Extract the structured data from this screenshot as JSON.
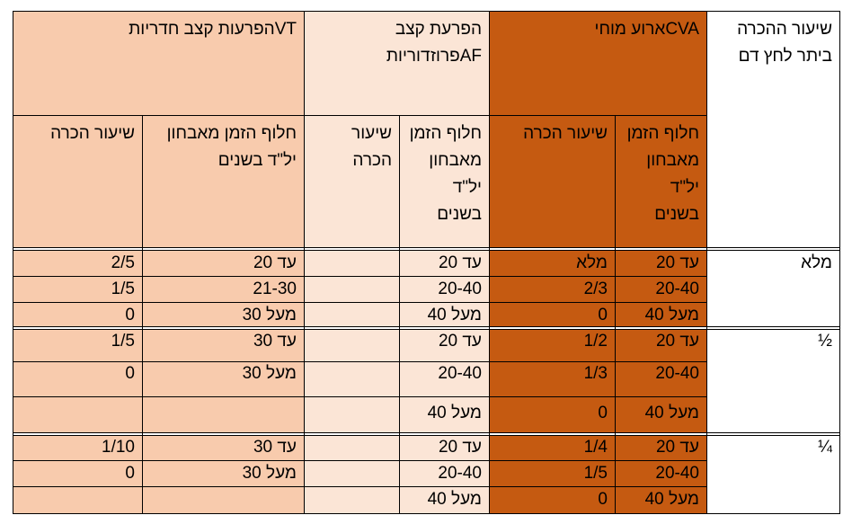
{
  "header": {
    "rate_col": "שיעור ההכרה ביתר לחץ דם",
    "cva": "CVAארוע מוחי",
    "af": "הפרעת קצב AFפרוזדוריות",
    "vt": "VTהפרעות קצב חדריות",
    "time_label": "חלוף הזמן מאבחון יל\"ד בשנים",
    "rate_label": "שיעור הכרה",
    "rate_label_af": "שיעור הכרה"
  },
  "groups": [
    {
      "label": "מלא",
      "rows": [
        {
          "cva_time": "עד 20",
          "cva_rate": "מלא",
          "af_time": "עד 20",
          "af_rate": "",
          "vt_time": "עד 20",
          "vt_rate": "2/5"
        },
        {
          "cva_time": "20-40",
          "cva_rate": "2/3",
          "af_time": "20-40",
          "af_rate": "",
          "vt_time": "21-30",
          "vt_rate": "1/5"
        },
        {
          "cva_time": "מעל 40",
          "cva_rate": "0",
          "af_time": "מעל 40",
          "af_rate": "",
          "vt_time": "מעל 30",
          "vt_rate": "0"
        }
      ]
    },
    {
      "label": "½",
      "rows": [
        {
          "cva_time": "עד 20",
          "cva_rate": "1/2",
          "af_time": "עד 20",
          "af_rate": "",
          "vt_time": "עד 30",
          "vt_rate": "1/5"
        },
        {
          "cva_time": "20-40",
          "cva_rate": "1/3",
          "af_time": "20-40",
          "af_rate": "",
          "vt_time": "מעל 30",
          "vt_rate": "0"
        },
        {
          "cva_time": "מעל 40",
          "cva_rate": "0",
          "af_time": "מעל 40",
          "af_rate": "",
          "vt_time": "",
          "vt_rate": ""
        }
      ]
    },
    {
      "label": "¼",
      "rows": [
        {
          "cva_time": "עד 20",
          "cva_rate": "1/4",
          "af_time": "עד 20",
          "af_rate": "",
          "vt_time": "עד 30",
          "vt_rate": "1/10"
        },
        {
          "cva_time": "20-40",
          "cva_rate": "1/5",
          "af_time": "20-40",
          "af_rate": "",
          "vt_time": "מעל 30",
          "vt_rate": "0"
        },
        {
          "cva_time": "מעל 40",
          "cva_rate": "0",
          "af_time": "מעל 40",
          "af_rate": "",
          "vt_time": "",
          "vt_rate": ""
        }
      ]
    }
  ],
  "colors": {
    "dark": "#c55a11",
    "mid": "#f8cbad",
    "light": "#fbe5d6",
    "border": "#000000"
  }
}
